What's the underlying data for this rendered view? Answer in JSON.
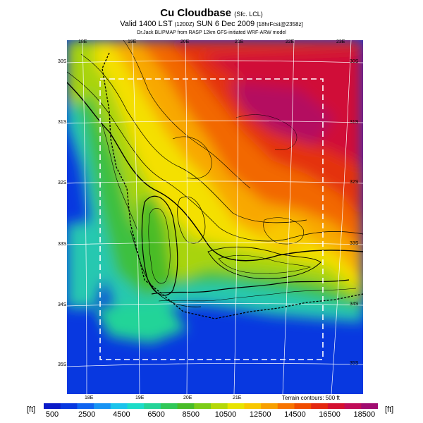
{
  "title": {
    "main": "Cu Cloudbase",
    "main_suffix": "(Sfc. LCL)",
    "valid_main": "Valid 1400 LST",
    "valid_utc": "(1200Z)",
    "valid_date": "SUN 6 Dec 2009",
    "valid_fcst": "[18hrFcst@2358z]",
    "source": "Dr.Jack BLIPMAP from RASP 12km GFS-initiated WRF-ARW model"
  },
  "top_labels": [
    "18E",
    "19E",
    "20E",
    "21E",
    "22E",
    "23E"
  ],
  "bottom_labels": [
    "18E",
    "19E",
    "20E",
    "21E"
  ],
  "left_labels": [
    "30S",
    "31S",
    "32S",
    "33S",
    "34S",
    "35S"
  ],
  "right_labels": [
    "30S",
    "31S",
    "32S",
    "33S",
    "34S",
    "35S"
  ],
  "terrain_note": "Terrain contours: 500 ft",
  "colorbar": {
    "unit": "[ft]",
    "labels": [
      "500",
      "2500",
      "4500",
      "6500",
      "8500",
      "10500",
      "12500",
      "14500",
      "16500",
      "18500"
    ],
    "colors": [
      "#0a1ac8",
      "#0838e0",
      "#1064f0",
      "#1894f4",
      "#1cc4ec",
      "#1cdcc8",
      "#24d498",
      "#30c858",
      "#48bc28",
      "#7ccc18",
      "#b4d808",
      "#e8e400",
      "#f8c800",
      "#f8a000",
      "#f87400",
      "#f04c00",
      "#e42810",
      "#d41030",
      "#c00c58",
      "#a00c70"
    ]
  }
}
